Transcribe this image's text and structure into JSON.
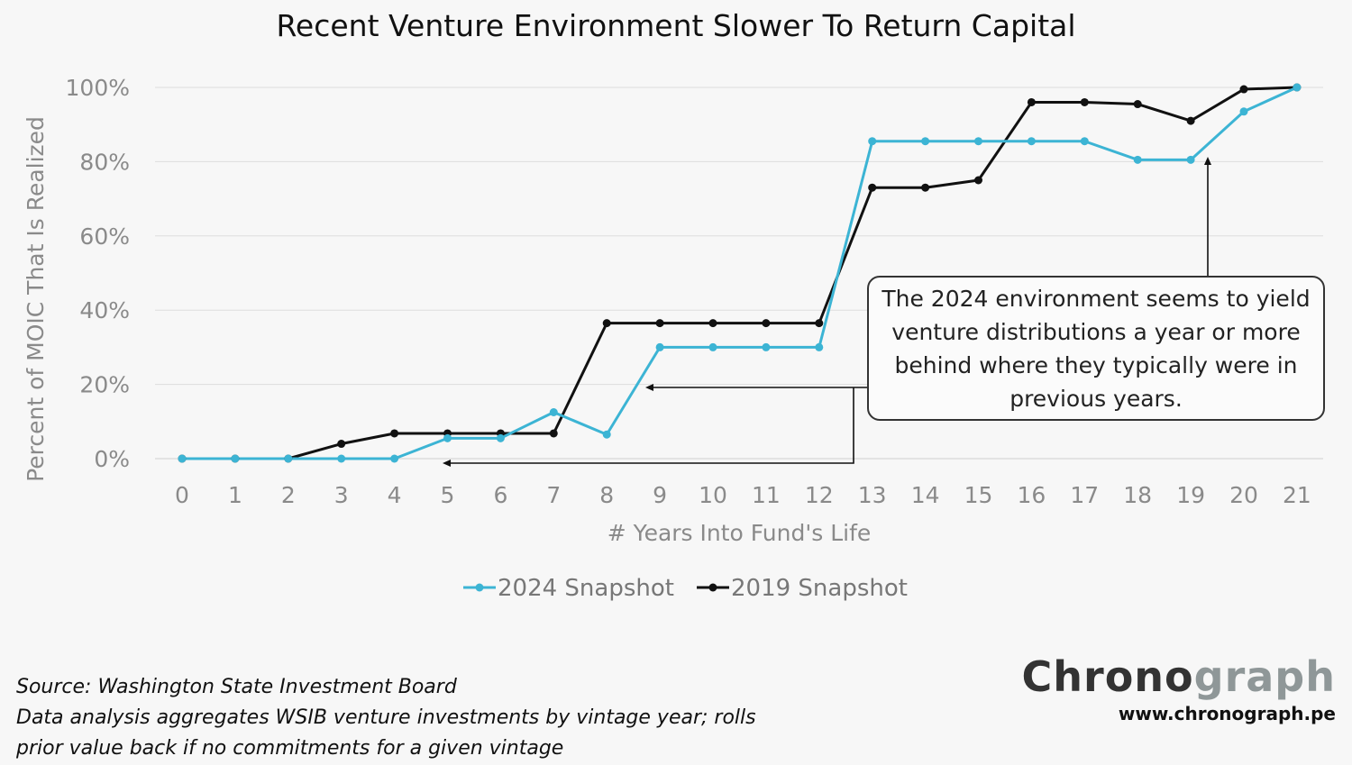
{
  "chart_data": {
    "type": "line",
    "title": "Recent Venture Environment Slower To Return Capital",
    "xlabel": "# Years Into Fund's Life",
    "ylabel": "Percent of MOIC That Is Realized",
    "ylim": [
      0,
      100
    ],
    "yticks": [
      "0%",
      "20%",
      "40%",
      "60%",
      "80%",
      "100%"
    ],
    "x": [
      0,
      1,
      2,
      3,
      4,
      5,
      6,
      7,
      8,
      9,
      10,
      11,
      12,
      13,
      14,
      15,
      16,
      17,
      18,
      19,
      20,
      21
    ],
    "grid": "horizontal",
    "legend_position": "bottom",
    "series": [
      {
        "name": "2024 Snapshot",
        "color": "#3cb4d4",
        "values": [
          0,
          0,
          0,
          0,
          0,
          5.5,
          5.5,
          12.5,
          6.5,
          30,
          30,
          30,
          30,
          85.5,
          85.5,
          85.5,
          85.5,
          85.5,
          80.5,
          80.5,
          93.5,
          100
        ]
      },
      {
        "name": "2019 Snapshot",
        "color": "#111111",
        "values": [
          0,
          0,
          0,
          4,
          6.8,
          6.8,
          6.8,
          6.8,
          36.5,
          36.5,
          36.5,
          36.5,
          36.5,
          73,
          73,
          75,
          96,
          96,
          95.5,
          91,
          99.5,
          100
        ]
      }
    ],
    "annotation": "The 2024 environment seems to yield venture distributions a year or more behind where they typically were in previous years."
  },
  "source": {
    "line1": "Source: Washington State Investment Board",
    "line2": "Data analysis aggregates WSIB venture investments by vintage year; rolls",
    "line3": "prior value back if no commitments for a given vintage"
  },
  "logo": {
    "part1": "Chrono",
    "part2": "graph",
    "url": "www.chronograph.pe"
  }
}
